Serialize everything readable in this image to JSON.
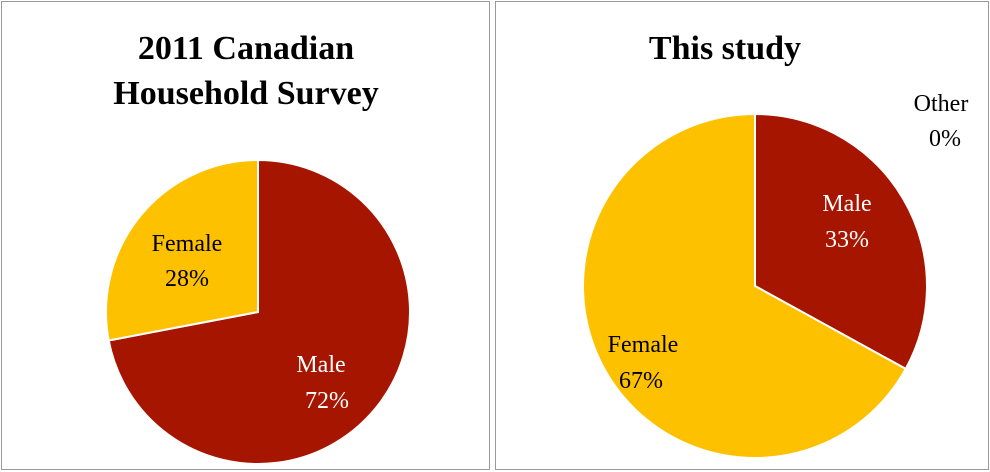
{
  "chart_data": [
    {
      "type": "pie",
      "title_lines": [
        "2011 Canadian",
        "Household Survey"
      ],
      "slices": [
        {
          "label": "Male",
          "value": 72,
          "value_text": "72%",
          "color": "#a61500",
          "text_color": "#ffffff"
        },
        {
          "label": "Female",
          "value": 28,
          "value_text": "28%",
          "color": "#fdc100",
          "text_color": "#000000"
        }
      ]
    },
    {
      "type": "pie",
      "title_lines": [
        "This study"
      ],
      "slices": [
        {
          "label": "Male",
          "value": 33,
          "value_text": "33%",
          "color": "#a61500",
          "text_color": "#ffffff"
        },
        {
          "label": "Female",
          "value": 67,
          "value_text": "67%",
          "color": "#fdc100",
          "text_color": "#000000"
        },
        {
          "label": "Other",
          "value": 0,
          "value_text": "0%",
          "color": "#9e9e9e",
          "text_color": "#000000"
        }
      ]
    }
  ]
}
